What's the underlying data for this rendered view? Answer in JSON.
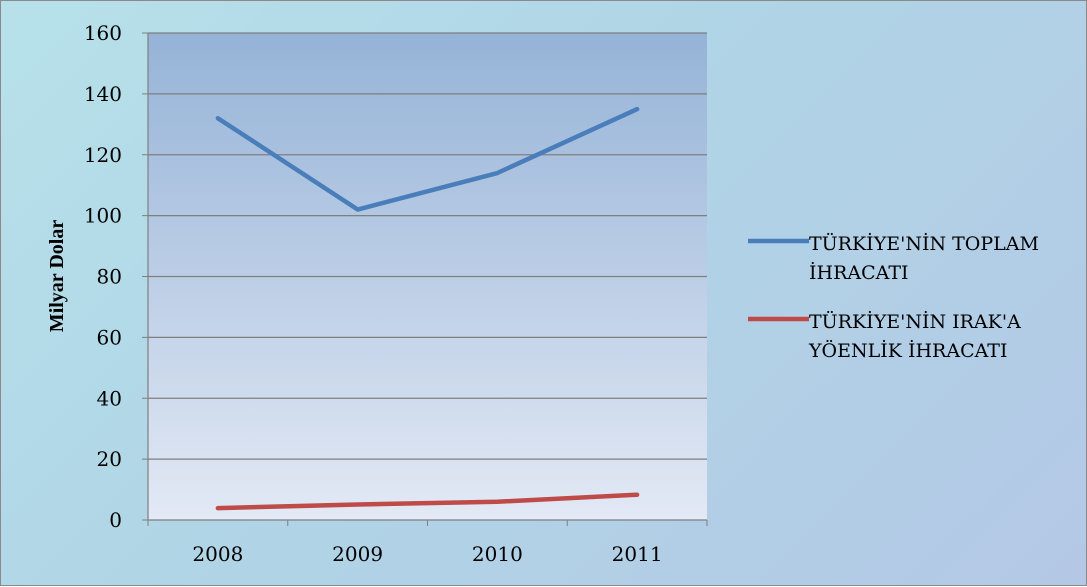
{
  "chart_data": {
    "type": "line",
    "title": "",
    "xlabel": "",
    "ylabel": "Milyar Dolar",
    "categories": [
      "2008",
      "2009",
      "2010",
      "2011"
    ],
    "ylim": [
      0,
      160
    ],
    "yticks": [
      0,
      20,
      40,
      60,
      80,
      100,
      120,
      140,
      160
    ],
    "grid": true,
    "legend_position": "right",
    "series": [
      {
        "name_lines": [
          "TÜRKİYE'NİN TOPLAM",
          "İHRACATI"
        ],
        "values": [
          132,
          102,
          114,
          135
        ],
        "color": "#4a7ebb"
      },
      {
        "name_lines": [
          "TÜRKİYE'NİN IRAK'A",
          "YÖENLİK İHRACATI"
        ],
        "values": [
          3.9,
          5.1,
          6.0,
          8.3
        ],
        "color": "#be4b48"
      }
    ]
  }
}
